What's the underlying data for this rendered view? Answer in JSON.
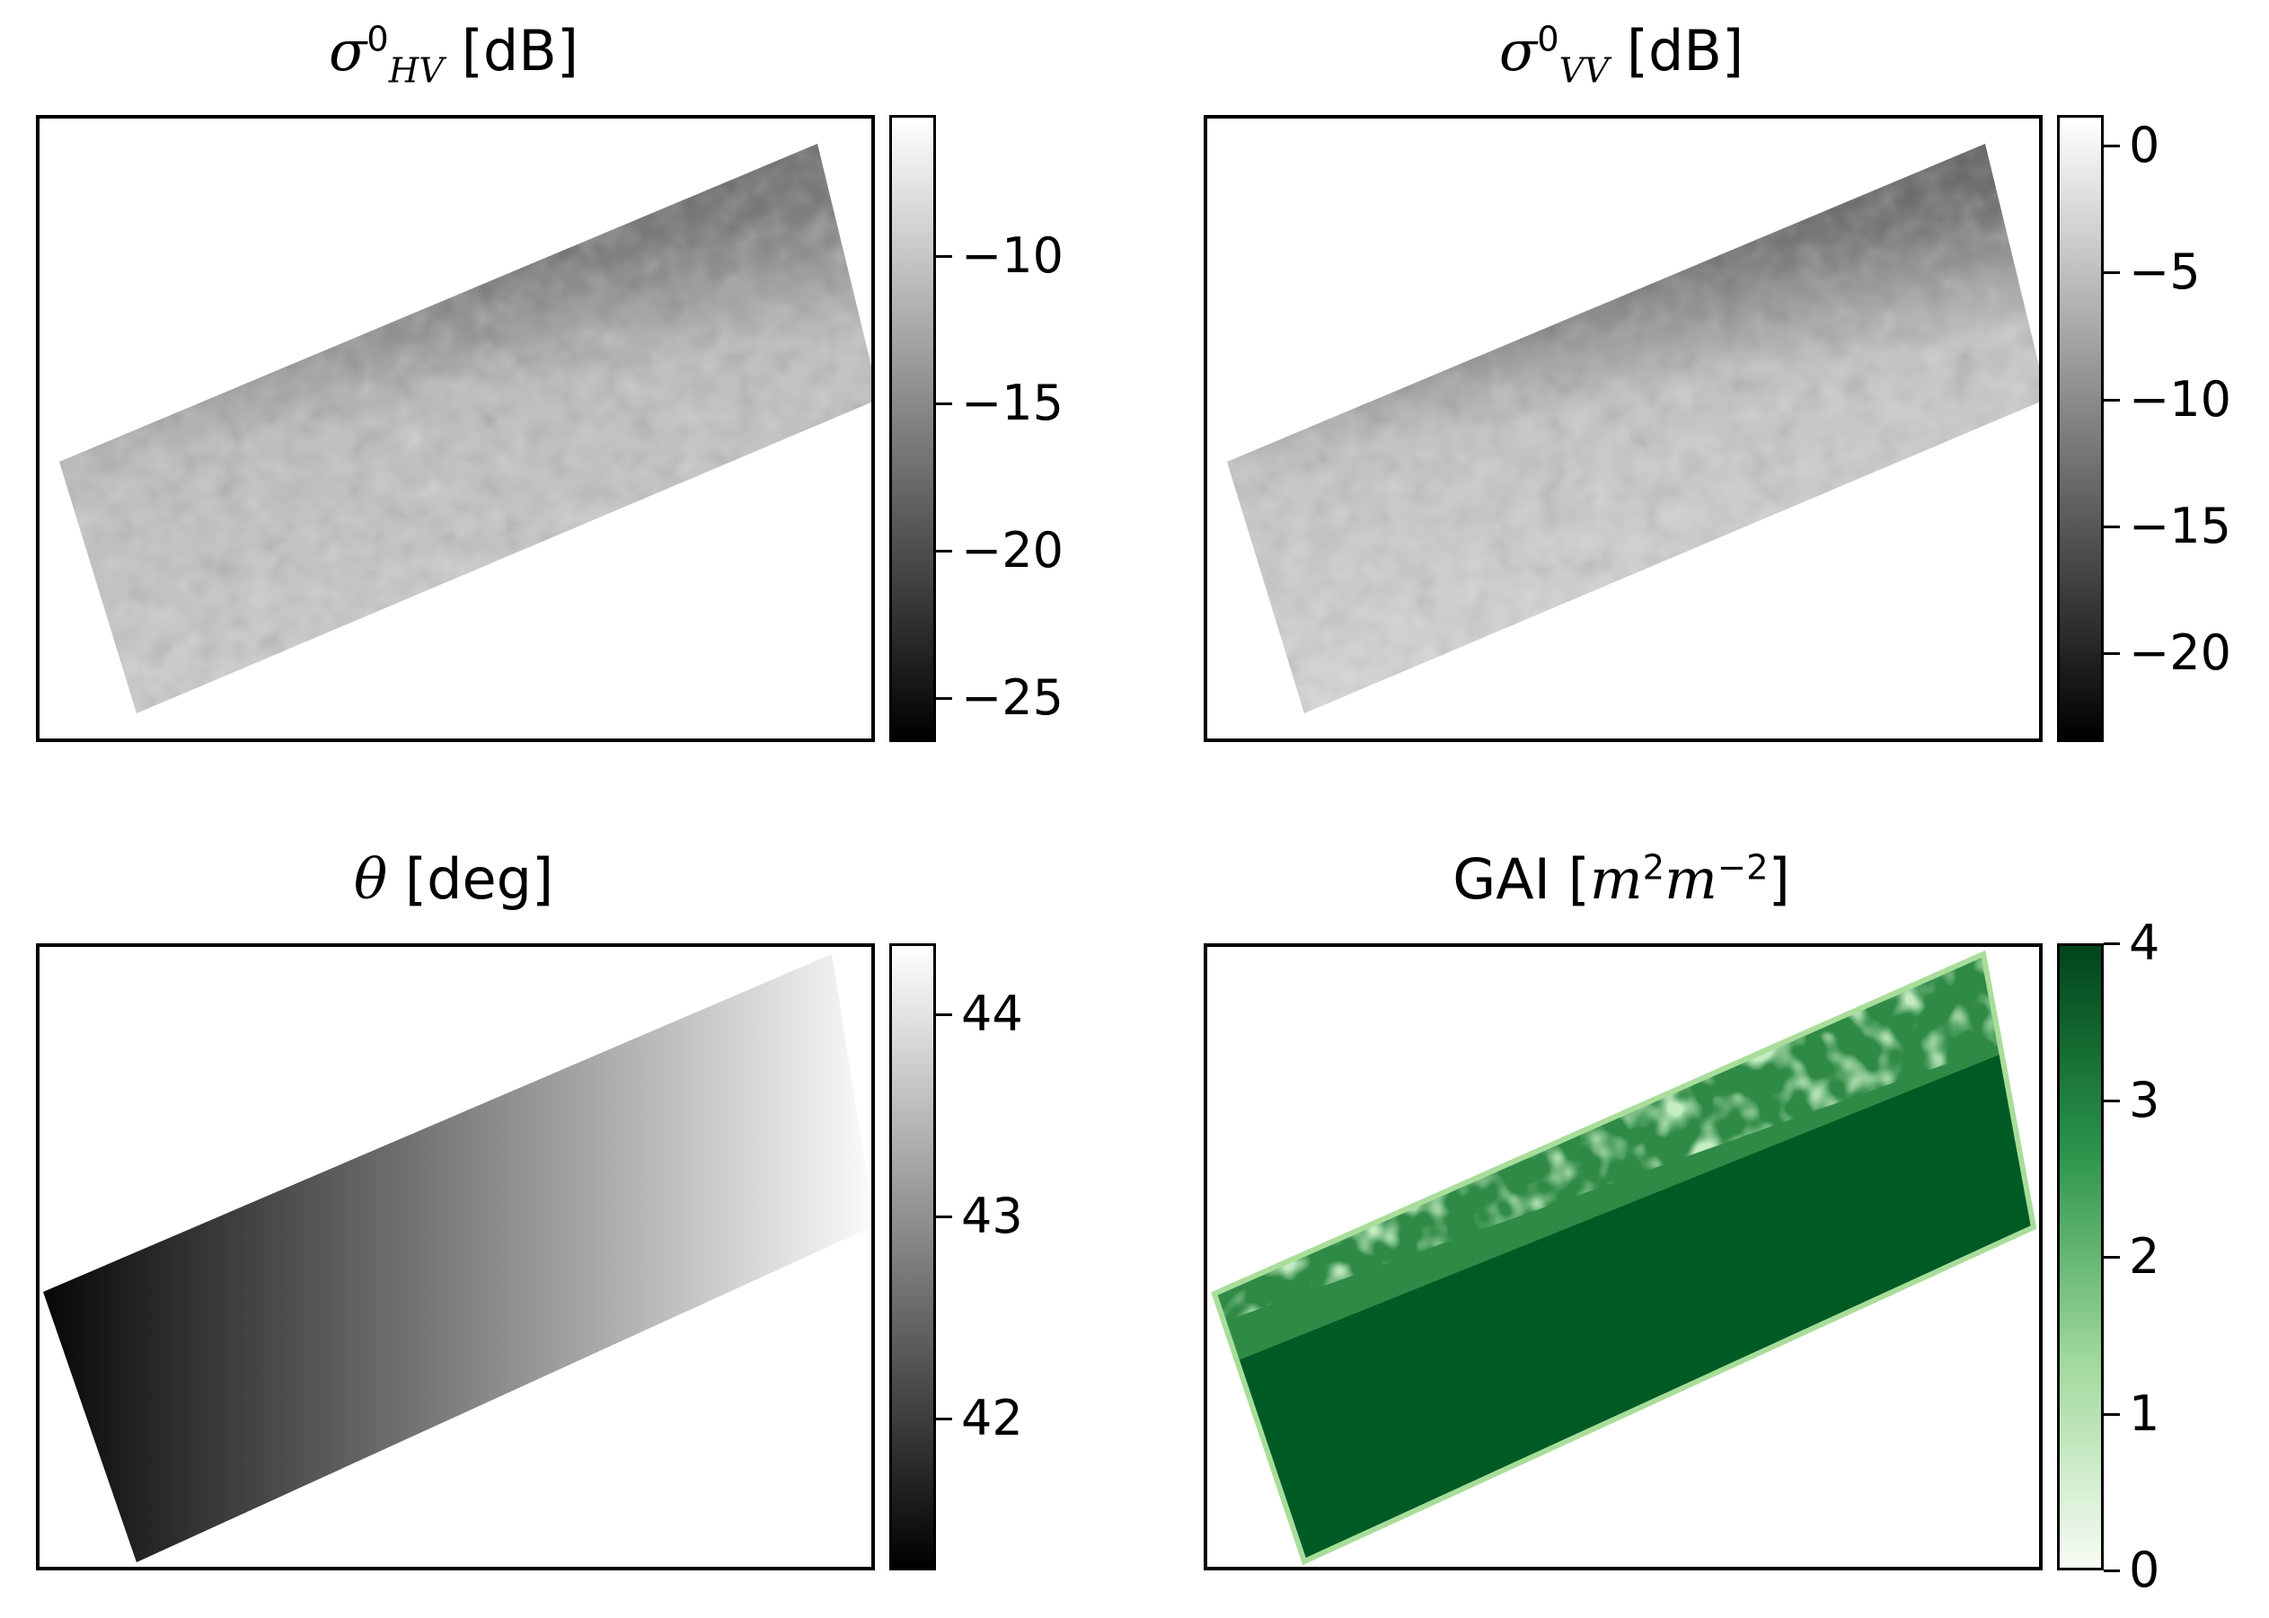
{
  "chart_data": [
    {
      "type": "heatmap",
      "title": {
        "symbol": "σ",
        "sup": "0",
        "sub": "HV",
        "unit": "[dB]"
      },
      "colormap": "gray",
      "colorbar": {
        "min": -26.5,
        "max": -5.2,
        "ticks": [
          -10,
          -15,
          -20,
          -25
        ],
        "tick_labels": [
          "−10",
          "−15",
          "−20",
          "−25"
        ]
      },
      "gradient": [
        "#000000",
        "#ffffff"
      ],
      "field": "speckle with dark band along upper edge",
      "fill": [
        "#6d6d6d",
        "#c9c9c9"
      ]
    },
    {
      "type": "heatmap",
      "title": {
        "symbol": "σ",
        "sup": "0",
        "sub": "VV",
        "unit": "[dB]"
      },
      "colormap": "gray",
      "colorbar": {
        "min": -23.5,
        "max": 1.2,
        "ticks": [
          0,
          -5,
          -10,
          -15,
          -20
        ],
        "tick_labels": [
          "0",
          "−5",
          "−10",
          "−15",
          "−20"
        ]
      },
      "gradient": [
        "#000000",
        "#ffffff"
      ],
      "field": "speckle with dark band along upper edge",
      "fill": [
        "#5b5b5b",
        "#d8d8d8"
      ]
    },
    {
      "type": "heatmap",
      "title": {
        "symbol": "θ",
        "unit": "[deg]"
      },
      "colormap": "gray",
      "colorbar": {
        "min": 41.25,
        "max": 44.35,
        "ticks": [
          44,
          43,
          42
        ],
        "tick_labels": [
          "44",
          "43",
          "42"
        ]
      },
      "gradient": [
        "#000000",
        "#ffffff"
      ],
      "field": "linear gradient increasing left to right",
      "fill": [
        "#0a0a0a",
        "#f8f8f8"
      ]
    },
    {
      "type": "heatmap",
      "title": {
        "symbol": "GAI",
        "unit_math": "m",
        "unit_sup1": "2",
        "unit_math2": "m",
        "unit_sup2": "−2"
      },
      "colormap": "Greens",
      "colorbar": {
        "min": 0,
        "max": 4,
        "ticks": [
          4,
          3,
          2,
          1,
          0
        ],
        "tick_labels": [
          "4",
          "3",
          "2",
          "1",
          "0"
        ]
      },
      "gradient": [
        "#f7fcf5",
        "#00441b"
      ],
      "field": "mostly saturated at 4 with lighter patches near upper edge",
      "fill": [
        "#005a24",
        "#41a05a"
      ]
    }
  ]
}
